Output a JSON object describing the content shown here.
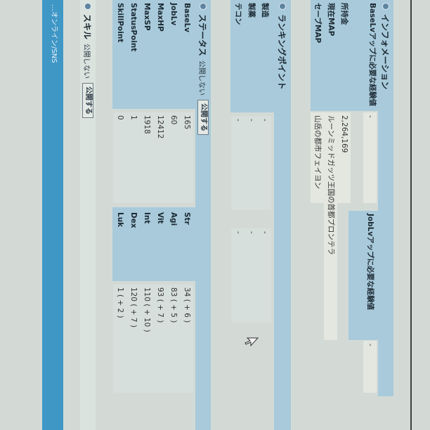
{
  "information": {
    "title": "インフォメーション",
    "rows": [
      {
        "label": "BaseLvアップに必要な経験値",
        "value": "-"
      },
      {
        "label": "所持金",
        "value": "2,264,169"
      },
      {
        "label": "現在MAP",
        "value": "ルーンミッドガッツ王国の首都プロンテラ"
      },
      {
        "label": "セーブMAP",
        "value": "山岳の都市フェイヨン"
      }
    ],
    "job_exp_label": "JobLvアップに必要な経験値",
    "job_exp_value": "-"
  },
  "ranking": {
    "title": "ランキングポイント",
    "rows": [
      {
        "label": "製造",
        "value": "-",
        "value2": "-"
      },
      {
        "label": "製薬",
        "value": "-",
        "value2": "-"
      },
      {
        "label": "テコン",
        "value": "-",
        "value2": "-"
      }
    ]
  },
  "status": {
    "title": "ステータス",
    "private_label": "公開しない",
    "public_button": "公開する",
    "rows": [
      {
        "label": "BaseLv",
        "value": "165",
        "stat": "Str",
        "stat_value": "34 ( + 6 )"
      },
      {
        "label": "JobLv",
        "value": "60",
        "stat": "Agi",
        "stat_value": "83 ( + 5 )"
      },
      {
        "label": "MaxHP",
        "value": "12412",
        "stat": "Vit",
        "stat_value": "93 ( + 7 )"
      },
      {
        "label": "MaxSP",
        "value": "1918",
        "stat": "Int",
        "stat_value": "110 ( + 10 )"
      },
      {
        "label": "StatusPoint",
        "value": "1",
        "stat": "Dex",
        "stat_value": "120 ( + 7 )"
      },
      {
        "label": "SkillPoint",
        "value": "0",
        "stat": "Luk",
        "stat_value": "1 ( + 2 )"
      }
    ]
  },
  "skill": {
    "title": "スキル",
    "private_label": "公開しない",
    "public_button": "公開する"
  },
  "footer": {
    "text": "…オンライン/SNS"
  },
  "colors": {
    "band": "#a8cadb",
    "footer": "#3f97c6",
    "background": "#d3dad6"
  }
}
